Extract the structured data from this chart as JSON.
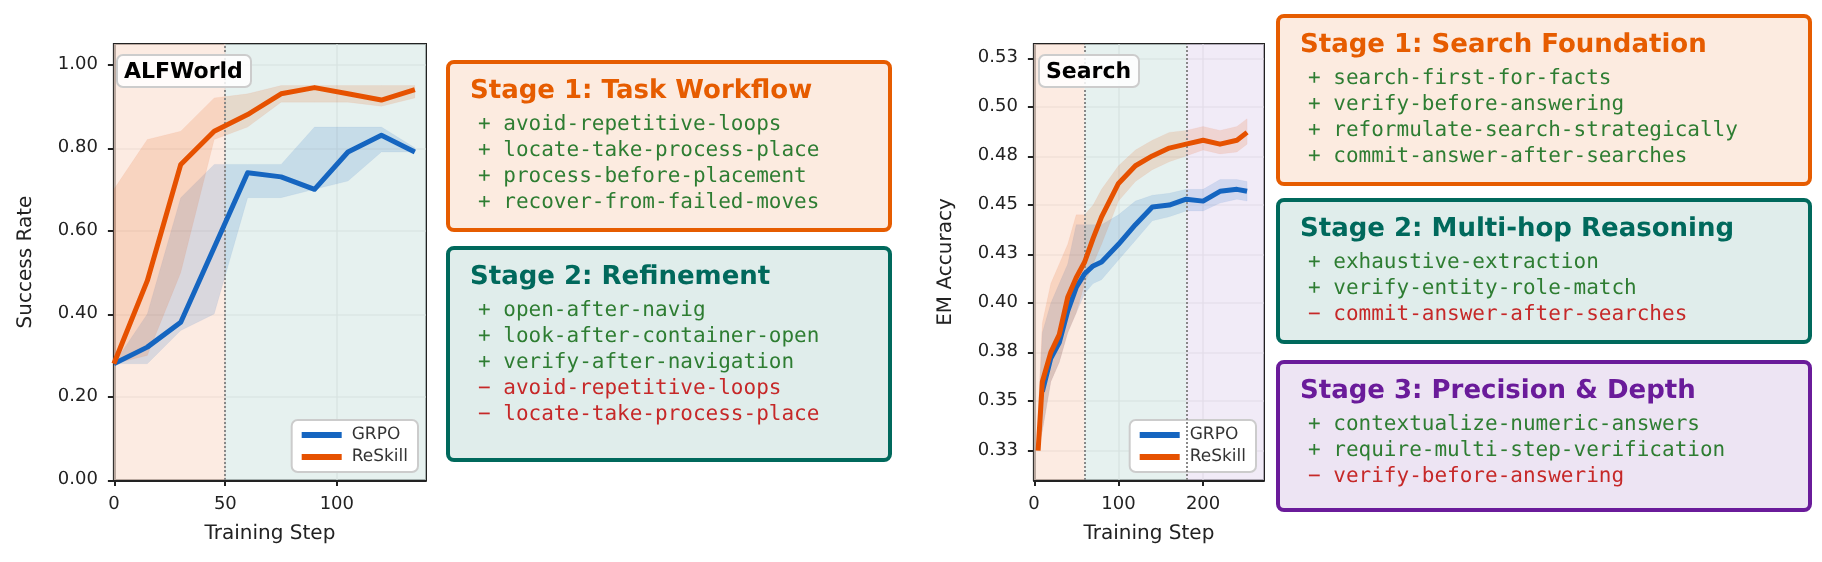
{
  "chart_data": [
    {
      "type": "line",
      "title": "ALFWorld",
      "xlabel": "Training Step",
      "ylabel": "Success Rate",
      "xlim": [
        0,
        140
      ],
      "xticks": [
        0,
        50,
        100
      ],
      "ylim": [
        0,
        1.05
      ],
      "yticks": [
        {
          "value": 0,
          "label": "0.00"
        },
        {
          "value": 0.2,
          "label": "0.20"
        },
        {
          "value": 0.4,
          "label": "0.40"
        },
        {
          "value": 0.6,
          "label": "0.60"
        },
        {
          "value": 0.8,
          "label": "0.80"
        },
        {
          "value": 1.0,
          "label": "1.00"
        }
      ],
      "grid": true,
      "legend": "bottom right",
      "marker": "none",
      "line_style": "solid",
      "bands": [
        {
          "axis": "x",
          "from": 0,
          "to": 50,
          "color": "#fbe3d6"
        },
        {
          "axis": "x",
          "from": 50,
          "to": 140,
          "color": "#dcebe8"
        }
      ],
      "ref_lines": [
        {
          "axis": "x",
          "value": 50,
          "line_style": "dotted",
          "color": "#888888"
        }
      ],
      "series": [
        {
          "name": "GRPO",
          "color": "#1565c0",
          "x": [
            0,
            15,
            30,
            45,
            60,
            75,
            90,
            105,
            120,
            135
          ],
          "values": [
            0.28,
            0.32,
            0.38,
            0.56,
            0.74,
            0.73,
            0.7,
            0.79,
            0.83,
            0.79
          ],
          "lower": [
            0.28,
            0.28,
            0.36,
            0.4,
            0.68,
            0.68,
            0.7,
            0.72,
            0.79,
            0.79
          ],
          "upper": [
            0.28,
            0.4,
            0.68,
            0.76,
            0.76,
            0.76,
            0.85,
            0.85,
            0.85,
            0.8
          ]
        },
        {
          "name": "ReSkill",
          "color": "#e65100",
          "x": [
            0,
            15,
            30,
            45,
            60,
            75,
            90,
            105,
            120,
            135
          ],
          "values": [
            0.28,
            0.48,
            0.76,
            0.84,
            0.88,
            0.93,
            0.945,
            0.93,
            0.915,
            0.94
          ],
          "lower": [
            0.28,
            0.3,
            0.5,
            0.82,
            0.85,
            0.91,
            0.91,
            0.91,
            0.9,
            0.92
          ],
          "upper": [
            0.7,
            0.82,
            0.84,
            0.92,
            0.93,
            0.95,
            0.95,
            0.95,
            0.95,
            0.95
          ]
        }
      ]
    },
    {
      "type": "other",
      "title": "Stage 1: Task Workflow",
      "color": "#e65c00",
      "annotations": [
        "+ avoid-repetitive-loops",
        "+ locate-take-process-place",
        "+ process-before-placement",
        "+ recover-from-failed-moves"
      ],
      "colors": [
        "#2e7d32",
        "#2e7d32",
        "#2e7d32",
        "#2e7d32"
      ]
    },
    {
      "type": "other",
      "title": "Stage 2: Refinement",
      "color": "#00695c",
      "annotations": [
        "+ open-after-navig",
        "+ look-after-container-open",
        "+ verify-after-navigation",
        "− avoid-repetitive-loops",
        "− locate-take-process-place"
      ],
      "colors": [
        "#2e7d32",
        "#2e7d32",
        "#2e7d32",
        "#c62828",
        "#c62828"
      ]
    },
    {
      "type": "line",
      "title": "Search",
      "xlabel": "Training Step",
      "ylabel": "EM Accuracy",
      "xlim": [
        0,
        272
      ],
      "xticks": [
        0,
        100,
        200
      ],
      "ylim": [
        0.31,
        0.532
      ],
      "yticks": [
        {
          "value": 0.325,
          "label": "0.33"
        },
        {
          "value": 0.35,
          "label": "0.35"
        },
        {
          "value": 0.375,
          "label": "0.38"
        },
        {
          "value": 0.4,
          "label": "0.40"
        },
        {
          "value": 0.425,
          "label": "0.43"
        },
        {
          "value": 0.45,
          "label": "0.45"
        },
        {
          "value": 0.475,
          "label": "0.48"
        },
        {
          "value": 0.5,
          "label": "0.50"
        },
        {
          "value": 0.525,
          "label": "0.53"
        }
      ],
      "grid": true,
      "legend": "bottom right",
      "marker": "none",
      "line_style": "solid",
      "bands": [
        {
          "axis": "x",
          "from": 0,
          "to": 60,
          "color": "#fbe3d6"
        },
        {
          "axis": "x",
          "from": 60,
          "to": 180,
          "color": "#dcebe8"
        },
        {
          "axis": "x",
          "from": 180,
          "to": 272,
          "color": "#ebe3f3"
        }
      ],
      "ref_lines": [
        {
          "axis": "x",
          "value": 60,
          "line_style": "dotted",
          "color": "#888888"
        },
        {
          "axis": "x",
          "value": 180,
          "line_style": "dotted",
          "color": "#888888"
        }
      ],
      "series": [
        {
          "name": "GRPO",
          "color": "#1565c0",
          "x": [
            5,
            10,
            20,
            30,
            40,
            50,
            60,
            70,
            80,
            100,
            120,
            140,
            160,
            180,
            200,
            220,
            240,
            252
          ],
          "values": [
            null,
            0.355,
            0.372,
            0.38,
            0.396,
            0.408,
            0.415,
            0.419,
            0.421,
            0.43,
            0.44,
            0.449,
            0.45,
            0.453,
            0.452,
            0.457,
            0.458,
            0.457
          ],
          "lower": [
            0.325,
            0.335,
            0.36,
            0.37,
            0.385,
            0.395,
            0.405,
            0.41,
            0.412,
            0.422,
            0.432,
            0.442,
            0.444,
            0.447,
            0.447,
            0.451,
            0.453,
            0.452
          ],
          "upper": [
            0.34,
            0.385,
            0.4,
            0.41,
            0.42,
            0.44,
            0.44,
            0.44,
            0.44,
            0.445,
            0.452,
            0.455,
            0.456,
            0.458,
            0.458,
            0.463,
            0.463,
            0.462
          ]
        },
        {
          "name": "ReSkill",
          "color": "#e65100",
          "x": [
            5,
            10,
            20,
            30,
            40,
            50,
            60,
            70,
            80,
            100,
            120,
            140,
            160,
            180,
            200,
            220,
            240,
            252
          ],
          "values": [
            0.325,
            0.36,
            0.375,
            0.384,
            0.403,
            0.413,
            0.421,
            0.433,
            0.444,
            0.461,
            0.47,
            0.475,
            0.479,
            0.481,
            0.483,
            0.481,
            0.483,
            0.487
          ],
          "lower": [
            0.325,
            0.335,
            0.36,
            0.37,
            0.385,
            0.395,
            0.41,
            0.42,
            0.43,
            0.452,
            0.462,
            0.468,
            0.472,
            0.475,
            0.478,
            0.476,
            0.477,
            0.481
          ],
          "upper": [
            0.345,
            0.39,
            0.41,
            0.42,
            0.43,
            0.445,
            0.445,
            0.45,
            0.458,
            0.47,
            0.478,
            0.483,
            0.487,
            0.488,
            0.49,
            0.488,
            0.49,
            0.494
          ]
        }
      ]
    },
    {
      "type": "other",
      "title": "Stage 1: Search Foundation",
      "color": "#e65c00",
      "annotations": [
        "+ search-first-for-facts",
        "+ verify-before-answering",
        "+ reformulate-search-strategically",
        "+ commit-answer-after-searches"
      ],
      "colors": [
        "#2e7d32",
        "#2e7d32",
        "#2e7d32",
        "#2e7d32"
      ]
    },
    {
      "type": "other",
      "title": "Stage 2: Multi-hop Reasoning",
      "color": "#00695c",
      "annotations": [
        "+ exhaustive-extraction",
        "+ verify-entity-role-match",
        "− commit-answer-after-searches"
      ],
      "colors": [
        "#2e7d32",
        "#2e7d32",
        "#c62828"
      ]
    },
    {
      "type": "other",
      "title": "Stage 3: Precision & Depth",
      "color": "#6a1b9a",
      "annotations": [
        "+ contextualize-numeric-answers",
        "+ require-multi-step-verification",
        "− verify-before-answering"
      ],
      "colors": [
        "#2e7d32",
        "#2e7d32",
        "#c62828"
      ]
    }
  ]
}
